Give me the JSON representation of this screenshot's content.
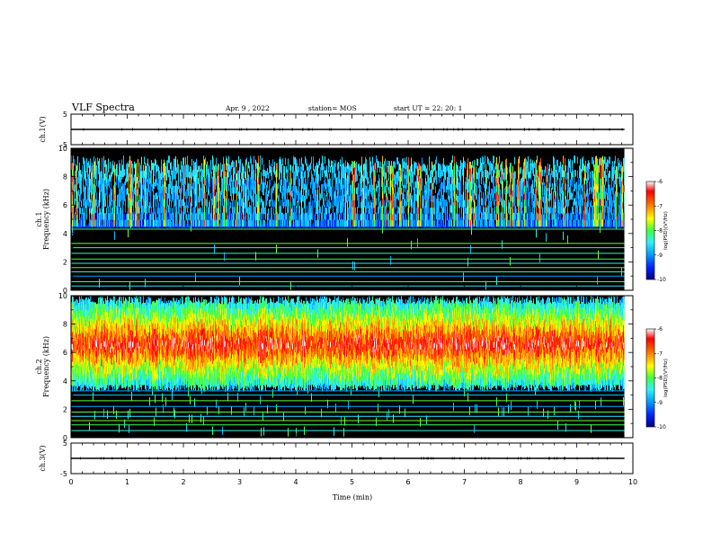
{
  "header": {
    "title": "VLF Spectra",
    "date": "Apr. 9  , 2022",
    "station": "station= MOS",
    "start": "start  UT  =   22: 20: 1"
  },
  "colors": {
    "cmap": [
      "#000088",
      "#0020ff",
      "#00a0ff",
      "#30f0ff",
      "#40ff40",
      "#ffff00",
      "#ff8000",
      "#ff0000",
      "#ffffff"
    ]
  },
  "chart_data": [
    {
      "type": "line",
      "name": "ch1-voltage",
      "ylabel": "ch.1(V)",
      "ylim": [
        -5,
        5
      ],
      "yticks": [
        "5",
        "-5"
      ],
      "x": [
        0,
        9.85
      ],
      "y": [
        0,
        0
      ]
    },
    {
      "type": "heatmap",
      "name": "ch1-spectrogram",
      "ylabel": "ch.1\nFrequency (kHz)",
      "ylim": [
        0,
        10
      ],
      "xlim": [
        0,
        10
      ],
      "yticks": [
        "0",
        "2",
        "4",
        "6",
        "8",
        "10"
      ],
      "data_extent_min": [
        0,
        9.85
      ],
      "colorbar": {
        "label": "log(PSD)(V²/Hz)",
        "range": [
          -10,
          -6
        ],
        "ticks": [
          "-6",
          "-7",
          "-8",
          "-9",
          "-10"
        ]
      },
      "hum_lines_khz": [
        0.3,
        0.6,
        1.0,
        1.3,
        1.6,
        1.9,
        2.2,
        2.6,
        3.0,
        3.3,
        4.3
      ],
      "emission_band_khz": [
        4.5,
        9.5
      ],
      "level": "low"
    },
    {
      "type": "heatmap",
      "name": "ch2-spectrogram",
      "ylabel": "ch.2\nFrequency (kHz)",
      "ylim": [
        0,
        10
      ],
      "xlim": [
        0,
        10
      ],
      "yticks": [
        "0",
        "2",
        "4",
        "6",
        "8",
        "10"
      ],
      "data_extent_min": [
        0,
        9.85
      ],
      "colorbar": {
        "label": "log(PSD)(V²/Hz)",
        "range": [
          -10,
          -6
        ],
        "ticks": [
          "-6",
          "-7",
          "-8",
          "-9",
          "-10"
        ]
      },
      "hum_lines_khz": [
        0.5,
        0.9,
        1.2,
        1.5,
        1.8,
        2.2,
        2.6,
        3.0,
        3.3
      ],
      "emission_band_khz": [
        3.5,
        10
      ],
      "emission_peak_khz": 6.6,
      "level": "high"
    },
    {
      "type": "line",
      "name": "ch3-voltage",
      "ylabel": "ch.3(V)",
      "ylim": [
        -5,
        5
      ],
      "yticks": [
        "5",
        "-5"
      ],
      "x": [
        0,
        9.85
      ],
      "y": [
        0,
        0
      ]
    }
  ],
  "xaxis": {
    "label": "Time  (min)",
    "ticks": [
      "0",
      "1",
      "2",
      "3",
      "4",
      "5",
      "6",
      "7",
      "8",
      "9",
      "10"
    ],
    "range": [
      0,
      10
    ]
  }
}
